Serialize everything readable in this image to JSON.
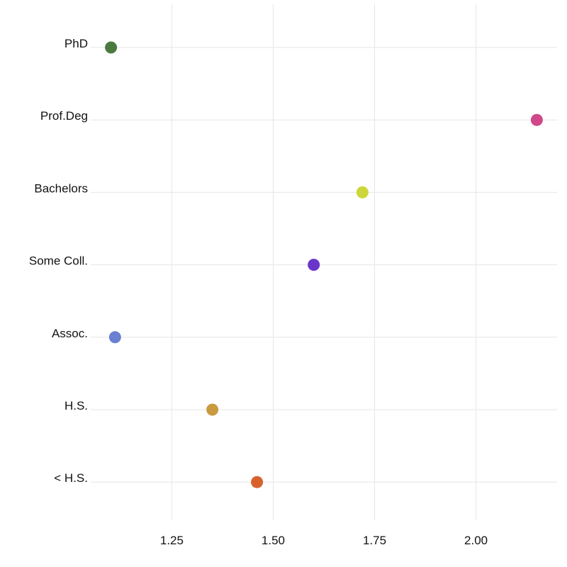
{
  "chart_data": {
    "type": "scatter",
    "title": "",
    "xlabel": "",
    "ylabel": "",
    "xlim": [
      1.05,
      2.2
    ],
    "x_ticks": [
      {
        "value": 1.25,
        "label": "1.25"
      },
      {
        "value": 1.5,
        "label": "1.50"
      },
      {
        "value": 1.75,
        "label": "1.75"
      },
      {
        "value": 2.0,
        "label": "2.00"
      }
    ],
    "grid": true,
    "legend": "none",
    "points": [
      {
        "category": "PhD",
        "value": 1.1,
        "color": "#4a7a3f"
      },
      {
        "category": "Prof.Deg",
        "value": 2.15,
        "color": "#d0478a"
      },
      {
        "category": "Bachelors",
        "value": 1.72,
        "color": "#cdd63a"
      },
      {
        "category": "Some Coll.",
        "value": 1.6,
        "color": "#6a35c9"
      },
      {
        "category": "Assoc.",
        "value": 1.11,
        "color": "#6a80d0"
      },
      {
        "category": "H.S.",
        "value": 1.35,
        "color": "#c99a3e"
      },
      {
        "category": "< H.S.",
        "value": 1.46,
        "color": "#d8622d"
      }
    ]
  }
}
